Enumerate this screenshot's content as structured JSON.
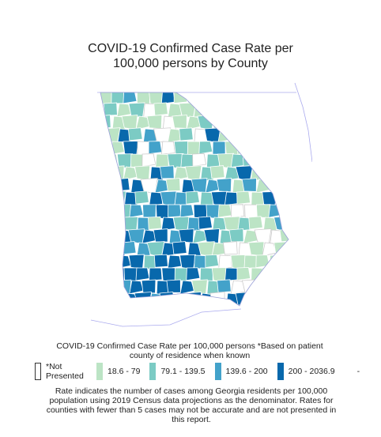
{
  "title_line1": "COVID-19 Confirmed Case Rate per",
  "title_line2": "100,000 persons by County",
  "legend": {
    "title_line1": "COVID-19 Confirmed Case Rate per 100,000 persons *Based on patient",
    "title_line2": "county of residence when known",
    "not_presented_line1": "*Not",
    "not_presented_line2": "Presented",
    "bins": [
      {
        "label": "18.6 - 79",
        "color": "#bce4c5"
      },
      {
        "label": "79.1 - 139.5",
        "color": "#7ccbc4"
      },
      {
        "label": "139.6 - 200",
        "color": "#43a2ca"
      },
      {
        "label": "200 - 2036.9",
        "color": "#0868ac"
      }
    ],
    "trailing": "-"
  },
  "footnote": {
    "line1": "Rate indicates the number of cases among Georgia residents per 100,000",
    "line2": "population using 2019 Census data projections as the denominator. Rates for",
    "line3": "counties with fewer than 5 cases may not be accurate and are not presented in",
    "line4": "this report."
  },
  "colors": {
    "bin1": "#bce4c5",
    "bin2": "#7ccbc4",
    "bin3": "#43a2ca",
    "bin4": "#0868ac",
    "border": "#ffffff",
    "outline": "#aaaaee"
  }
}
